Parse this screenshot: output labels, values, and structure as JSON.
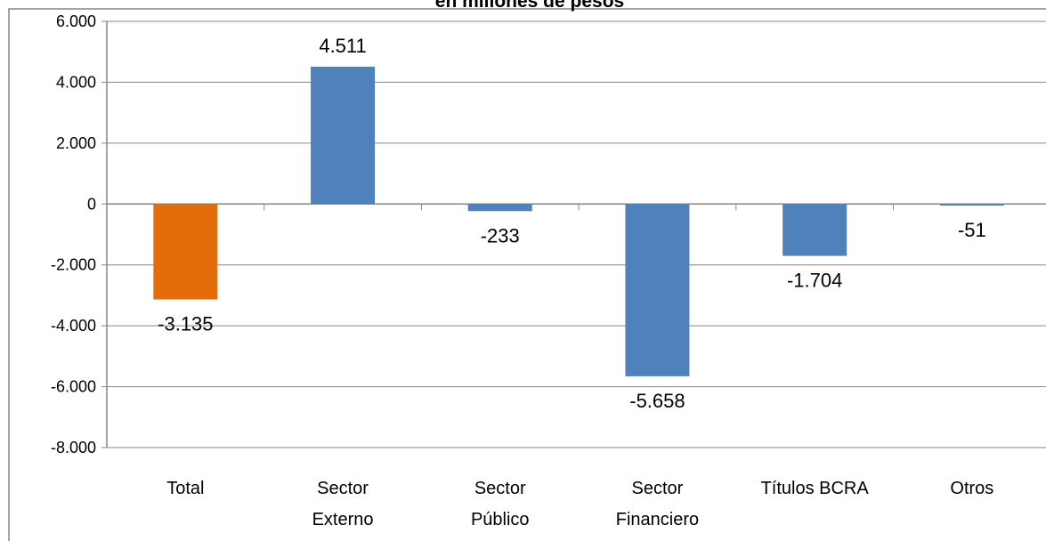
{
  "chart_data": {
    "type": "bar",
    "title": "en millones de pesos",
    "categories": [
      [
        "Total"
      ],
      [
        "Sector",
        "Externo"
      ],
      [
        "Sector",
        "Público"
      ],
      [
        "Sector",
        "Financiero"
      ],
      [
        "Títulos BCRA"
      ],
      [
        "Otros"
      ]
    ],
    "values": [
      -3135,
      4511,
      -233,
      -5658,
      -1704,
      -51
    ],
    "value_labels": [
      "-3.135",
      "4.511",
      "-233",
      "-5.658",
      "-1.704",
      "-51"
    ],
    "colors": [
      "#e46c0a",
      "#4f81bd",
      "#4f81bd",
      "#4f81bd",
      "#4f81bd",
      "#4f81bd"
    ],
    "ylim": [
      -8000,
      6000
    ],
    "yticks": [
      {
        "value": -8000,
        "label": "-8.000"
      },
      {
        "value": -6000,
        "label": "-6.000"
      },
      {
        "value": -4000,
        "label": "-4.000"
      },
      {
        "value": -2000,
        "label": "-2.000"
      },
      0,
      {
        "value": 2000,
        "label": "2.000"
      },
      {
        "value": 4000,
        "label": "4.000"
      },
      {
        "value": 6000,
        "label": "6.000"
      }
    ],
    "grid": true
  }
}
